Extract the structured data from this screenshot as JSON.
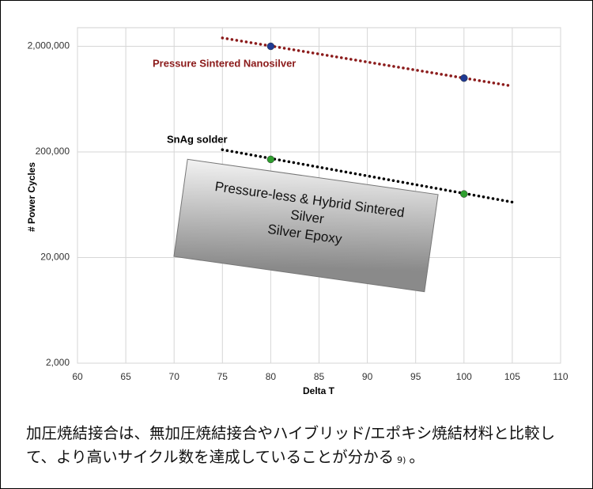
{
  "chart_data": {
    "type": "line",
    "log_y": true,
    "grid": true,
    "xlabel": "Delta T",
    "ylabel": "# Power Cycles",
    "xlim": [
      60,
      110
    ],
    "xticks": [
      60,
      65,
      70,
      75,
      80,
      85,
      90,
      95,
      100,
      105,
      110
    ],
    "ylim": [
      2000,
      3000000
    ],
    "yticks": [
      {
        "value": 2000,
        "label": "2,000"
      },
      {
        "value": 20000,
        "label": "20,000"
      },
      {
        "value": 200000,
        "label": "200,000"
      },
      {
        "value": 2000000,
        "label": "2,000,000"
      }
    ],
    "series": [
      {
        "name": "Pressure Sintered Nanosilver",
        "color": "#8b1a1a",
        "marker_color": "#1f3a93",
        "x": [
          75,
          105
        ],
        "values": [
          2400000,
          840000
        ],
        "points": {
          "x": [
            80,
            100
          ],
          "values": [
            2000000,
            1000000
          ]
        }
      },
      {
        "name": "SnAg solder",
        "color": "#000000",
        "marker_color": "#2e9e2e",
        "x": [
          75,
          105
        ],
        "values": [
          210000,
          67000
        ],
        "points": {
          "x": [
            80,
            100
          ],
          "values": [
            170000,
            80000
          ]
        }
      }
    ],
    "annotation": [
      "Pressure-less & Hybrid Sintered",
      "Silver",
      "Silver Epoxy"
    ]
  },
  "caption": {
    "text": "加圧焼結接合は、無加圧焼結接合やハイブリッド/エポキシ焼結材料と比較して、より高いサイクル数を達成していることが分かる",
    "ref": "9)",
    "end": "。"
  }
}
